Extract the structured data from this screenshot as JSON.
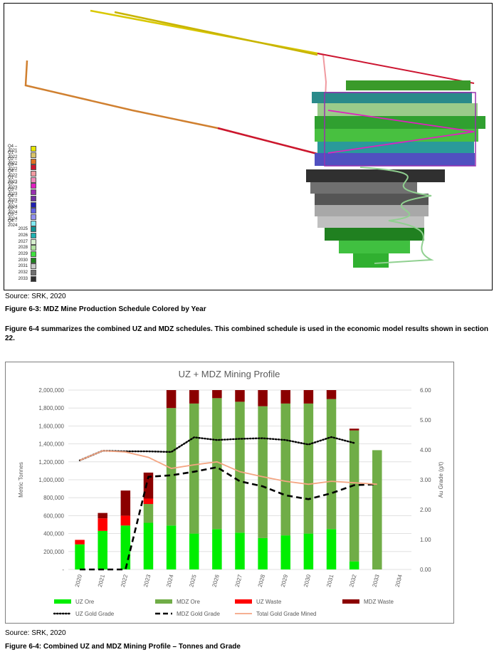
{
  "figure1": {
    "legend": [
      {
        "label": "Q4 – 2021",
        "color": "#e6e600"
      },
      {
        "label": "Q1 – 2022",
        "color": "#d9c36a"
      },
      {
        "label": "Q2 – 2022",
        "color": "#e07020"
      },
      {
        "label": "Q3 – 2022",
        "color": "#cc1530"
      },
      {
        "label": "Q4 – 2022",
        "color": "#f09aa0"
      },
      {
        "label": "Q1 – 2023",
        "color": "#ee88b8"
      },
      {
        "label": "Q2 – 2023",
        "color": "#e020c0"
      },
      {
        "label": "Q3 – 2023",
        "color": "#9930b0"
      },
      {
        "label": "Q4 – 2023",
        "color": "#7030a0"
      },
      {
        "label": "Q1 – 2024",
        "color": "#2020b0"
      },
      {
        "label": "Q2 – 2024",
        "color": "#6060e0"
      },
      {
        "label": "Q3 – 2024",
        "color": "#9090f0"
      },
      {
        "label": "Q4 – 2024",
        "color": "#80e8f0"
      },
      {
        "label": "2025",
        "color": "#109090"
      },
      {
        "label": "2026",
        "color": "#20b0b0"
      },
      {
        "label": "2027",
        "color": "#d8f0d0"
      },
      {
        "label": "2028",
        "color": "#b0e0a0"
      },
      {
        "label": "2029",
        "color": "#40e040"
      },
      {
        "label": "2030",
        "color": "#208020"
      },
      {
        "label": "2031",
        "color": "#c8c8c8"
      },
      {
        "label": "2032",
        "color": "#707070"
      },
      {
        "label": "2033",
        "color": "#303030"
      }
    ],
    "source": "Source: SRK, 2020",
    "caption": "Figure 6-3: MDZ Mine Production Schedule Colored by Year"
  },
  "paragraph": "Figure 6-4 summarizes the combined UZ and MDZ schedules. This combined schedule is used in the economic model results shown in section 22.",
  "chart_data": {
    "type": "bar",
    "title": "UZ + MDZ Mining Profile",
    "ylabel": "Metric Tonnes",
    "y2label": "Au Grade (g/t)",
    "ylim": [
      0,
      2000000
    ],
    "y2lim": [
      0,
      6
    ],
    "yticks": [
      "-",
      "200,000",
      "400,000",
      "600,000",
      "800,000",
      "1,000,000",
      "1,200,000",
      "1,400,000",
      "1,600,000",
      "1,800,000",
      "2,000,000"
    ],
    "y2ticks": [
      "0.00",
      "1.00",
      "2.00",
      "3.00",
      "4.00",
      "5.00",
      "6.00"
    ],
    "categories": [
      "2020",
      "2021",
      "2022",
      "2023",
      "2024",
      "2025",
      "2026",
      "2027",
      "2028",
      "2029",
      "2030",
      "2031",
      "2032",
      "2033",
      "2034"
    ],
    "stacked_series": [
      {
        "name": "UZ Ore",
        "color": "#00ee00",
        "values": [
          280000,
          430000,
          490000,
          520000,
          490000,
          400000,
          450000,
          410000,
          350000,
          380000,
          400000,
          450000,
          90000,
          0,
          0
        ]
      },
      {
        "name": "MDZ Ore",
        "color": "#70ad47",
        "values": [
          0,
          0,
          0,
          210000,
          1310000,
          1450000,
          1460000,
          1460000,
          1470000,
          1470000,
          1450000,
          1450000,
          1460000,
          1330000,
          0
        ]
      },
      {
        "name": "UZ Waste",
        "color": "#ff0000",
        "values": [
          50000,
          140000,
          110000,
          60000,
          0,
          0,
          0,
          0,
          0,
          0,
          0,
          0,
          0,
          0,
          0
        ]
      },
      {
        "name": "MDZ Waste",
        "color": "#8b0000",
        "values": [
          0,
          60000,
          280000,
          290000,
          200000,
          150000,
          90000,
          130000,
          180000,
          150000,
          150000,
          100000,
          20000,
          0,
          0
        ]
      }
    ],
    "line_series": [
      {
        "name": "UZ Gold Grade",
        "color": "#000000",
        "style": "dotted",
        "values": [
          3.65,
          3.97,
          3.95,
          3.95,
          3.93,
          4.42,
          4.33,
          4.37,
          4.39,
          4.33,
          4.18,
          4.43,
          4.23,
          null,
          null
        ]
      },
      {
        "name": "MDZ Gold Grade",
        "color": "#000000",
        "style": "dashed",
        "values": [
          0,
          0,
          0,
          3.1,
          3.15,
          3.27,
          3.42,
          2.95,
          2.78,
          2.48,
          2.35,
          2.55,
          2.82,
          2.85,
          null
        ]
      },
      {
        "name": "Total Gold Grade Mined",
        "color": "#f4a582",
        "style": "solid",
        "values": [
          3.65,
          3.97,
          3.93,
          3.75,
          3.38,
          3.5,
          3.6,
          3.27,
          3.1,
          2.95,
          2.85,
          2.95,
          2.9,
          2.85,
          null
        ]
      }
    ],
    "grid": true,
    "legend_position": "bottom"
  },
  "figure2": {
    "source": "Source: SRK, 2020",
    "caption": "Figure 6-4: Combined UZ and MDZ Mining Profile – Tonnes and Grade"
  }
}
